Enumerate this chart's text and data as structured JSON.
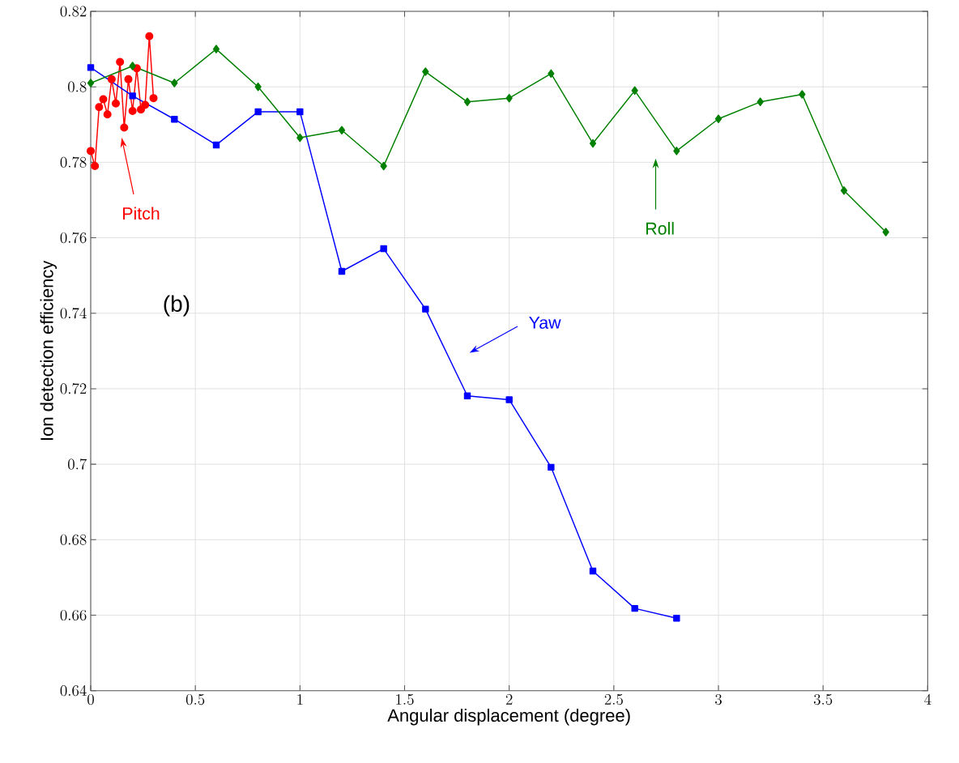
{
  "chart_data": {
    "type": "line",
    "xlabel": "Angular displacement (degree)",
    "ylabel": "Ion detection efficiency",
    "annotations": [
      "(b)"
    ],
    "xlim": [
      0,
      4
    ],
    "ylim": [
      0.64,
      0.82
    ],
    "xticks": [
      0,
      0.5,
      1,
      1.5,
      2,
      2.5,
      3,
      3.5,
      4
    ],
    "yticks": [
      0.64,
      0.66,
      0.68,
      0.7,
      0.72,
      0.74,
      0.76,
      0.78,
      0.8,
      0.82
    ],
    "grid": true,
    "legend": false,
    "series": [
      {
        "name": "Pitch",
        "color": "#ff0000",
        "marker": "circle",
        "x": [
          0,
          0.02,
          0.04,
          0.06,
          0.08,
          0.1,
          0.12,
          0.14,
          0.16,
          0.18,
          0.2,
          0.22,
          0.24,
          0.26,
          0.28,
          0.3
        ],
        "values": [
          0.783,
          0.779,
          0.7946,
          0.7967,
          0.7927,
          0.802,
          0.7956,
          0.8066,
          0.7892,
          0.802,
          0.7936,
          0.8049,
          0.794,
          0.7952,
          0.8134,
          0.797
        ]
      },
      {
        "name": "Yaw",
        "color": "#0000ff",
        "marker": "square",
        "x": [
          0,
          0.2,
          0.4,
          0.6,
          0.8,
          1,
          1.2,
          1.4,
          1.6,
          1.8,
          2,
          2.2,
          2.4,
          2.6,
          2.8
        ],
        "values": [
          0.8051,
          0.7976,
          0.7914,
          0.7846,
          0.7934,
          0.7934,
          0.7511,
          0.7571,
          0.7411,
          0.7181,
          0.7171,
          0.6992,
          0.6717,
          0.6618,
          0.6592
        ]
      },
      {
        "name": "Roll",
        "color": "#008000",
        "marker": "diamond",
        "x": [
          0,
          0.2,
          0.4,
          0.6,
          0.8,
          1,
          1.2,
          1.4,
          1.6,
          1.8,
          2,
          2.2,
          2.4,
          2.6,
          2.8,
          3,
          3.2,
          3.4,
          3.6,
          3.8
        ],
        "values": [
          0.801,
          0.8055,
          0.801,
          0.81,
          0.8,
          0.7865,
          0.7885,
          0.779,
          0.804,
          0.796,
          0.797,
          0.8035,
          0.785,
          0.799,
          0.783,
          0.7915,
          0.796,
          0.798,
          0.7725,
          0.7615
        ]
      }
    ]
  }
}
